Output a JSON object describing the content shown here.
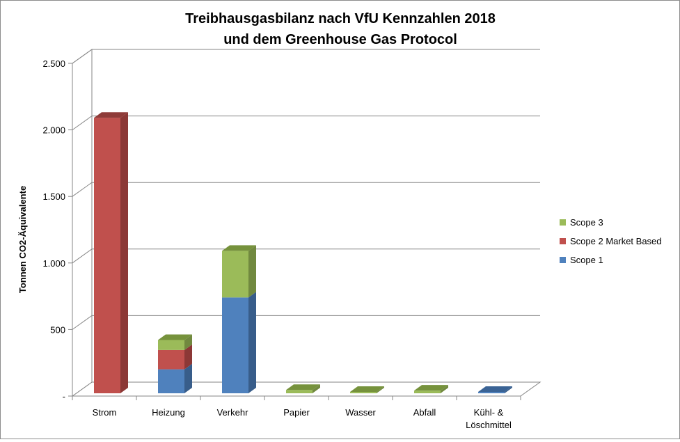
{
  "chart_data": {
    "type": "bar",
    "stacked": true,
    "three_d": true,
    "title_lines": [
      "Treibhausgasbilanz nach VfU Kennzahlen 2018",
      "und dem Greenhouse Gas Protocol"
    ],
    "ylabel": "Tonnen CO2-Äquivalente",
    "xlabel": "",
    "ylim": [
      0,
      2500
    ],
    "yticks": [
      0,
      500,
      1000,
      1500,
      2000,
      2500
    ],
    "ytick_labels": [
      "-",
      "500",
      "1.000",
      "1.500",
      "2.000",
      "2.500"
    ],
    "grid": true,
    "legend_position": "right",
    "categories": [
      "Strom",
      "Heizung",
      "Verkehr",
      "Papier",
      "Wasser",
      "Abfall",
      "Kühl- & Löschmittel"
    ],
    "series": [
      {
        "name": "Scope 1",
        "color": "#4f81bd",
        "top_color": "#3a6395",
        "side_color": "#385d8a",
        "values": [
          0,
          180,
          720,
          0,
          0,
          0,
          8
        ]
      },
      {
        "name": "Scope 2 Market Based",
        "color": "#c0504d",
        "top_color": "#8f3b39",
        "side_color": "#8c3836",
        "values": [
          2070,
          145,
          0,
          0,
          0,
          0,
          0
        ]
      },
      {
        "name": "Scope 3",
        "color": "#9bbb59",
        "top_color": "#76923c",
        "side_color": "#71893f",
        "values": [
          0,
          75,
          350,
          25,
          8,
          20,
          0
        ]
      }
    ]
  }
}
